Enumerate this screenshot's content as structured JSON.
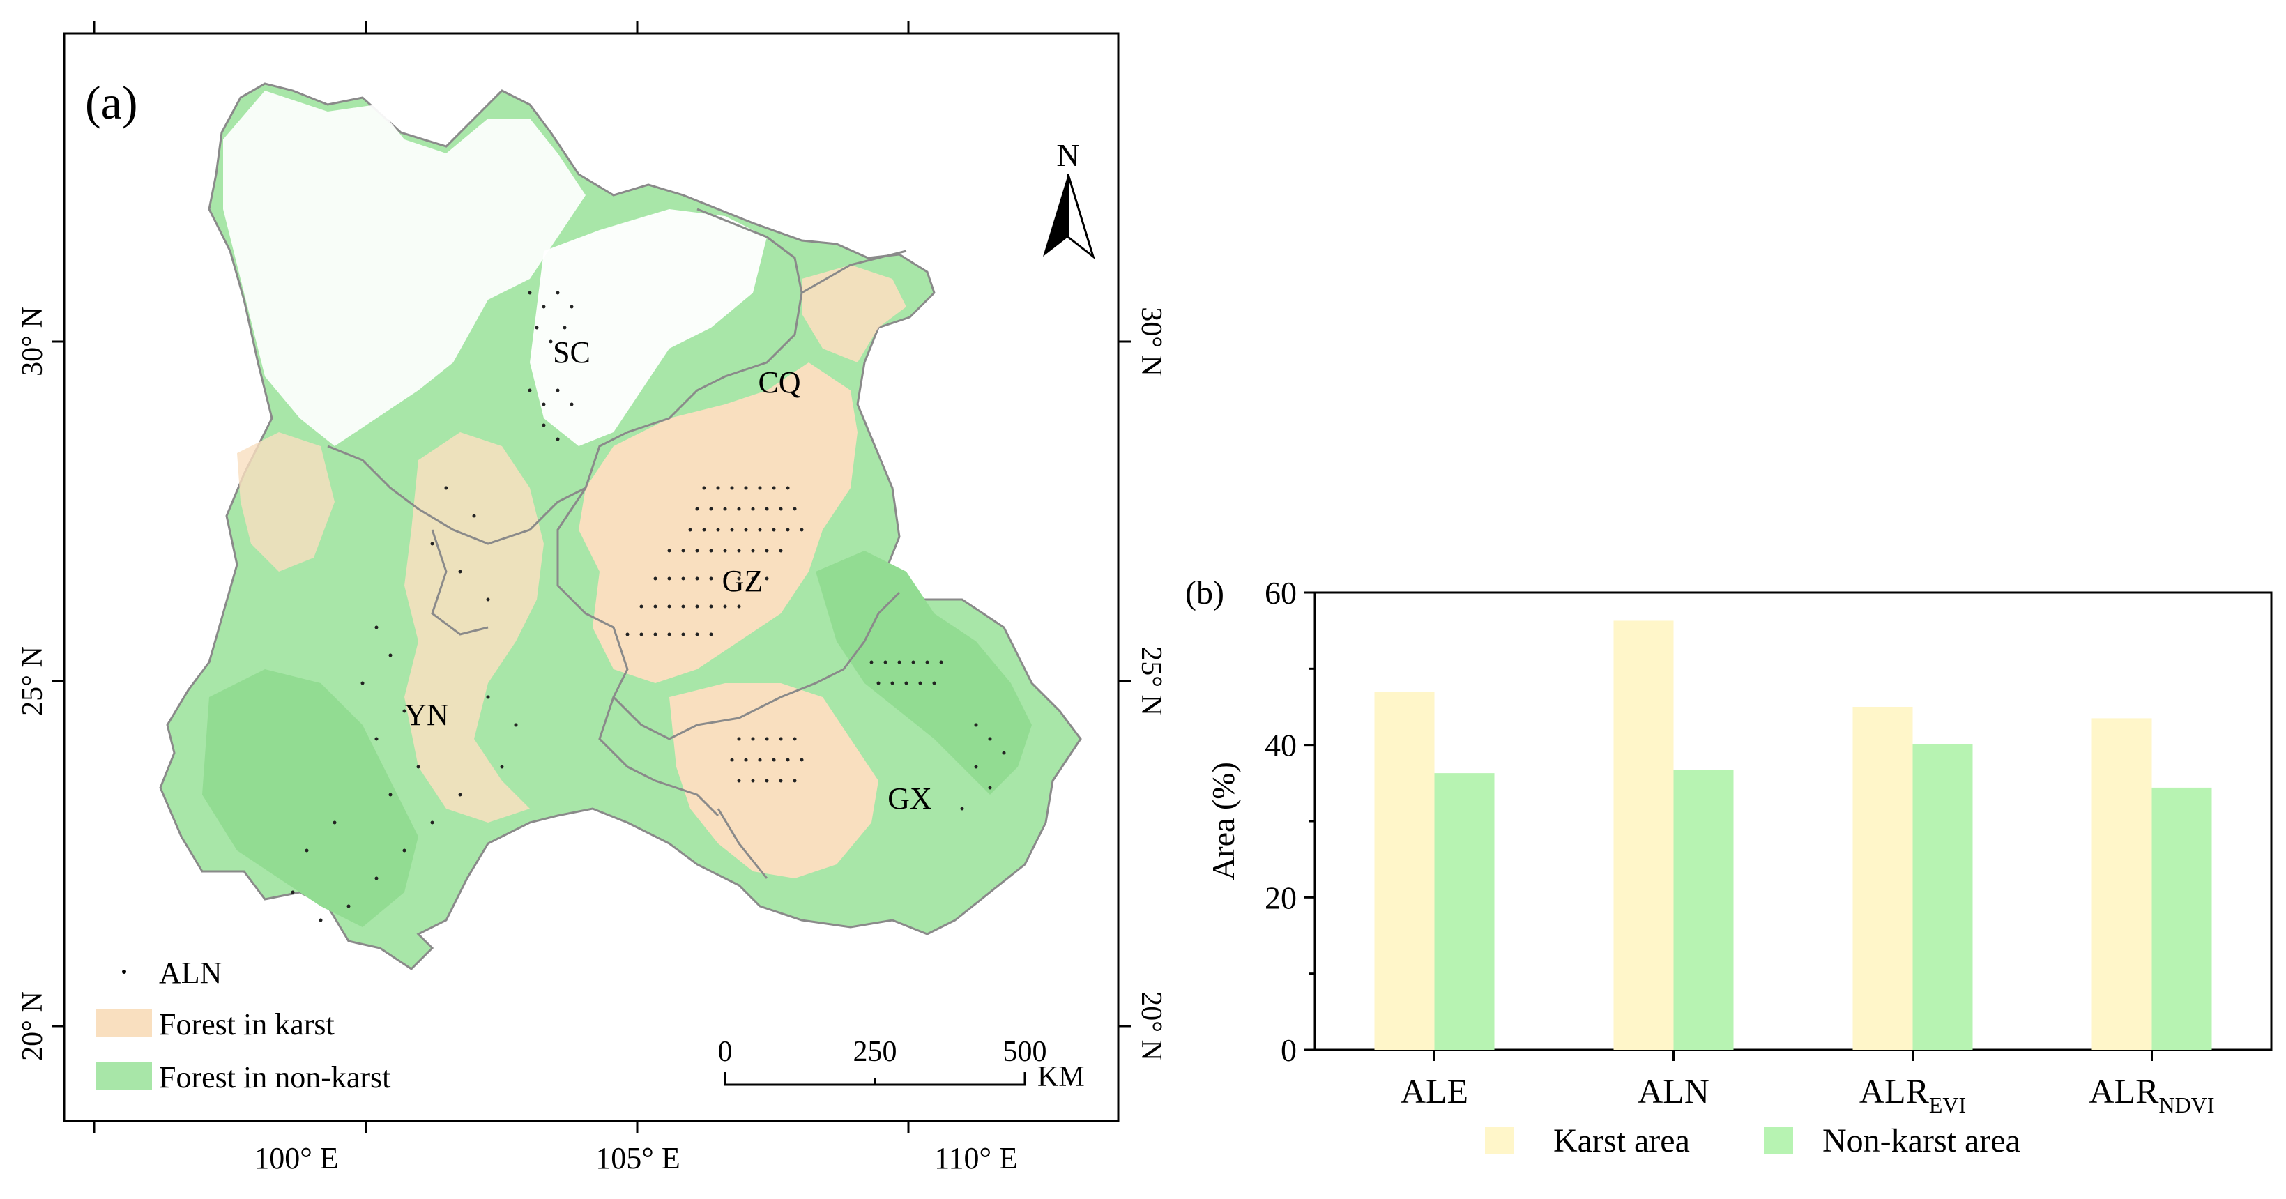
{
  "panel_a": {
    "label": "(a)",
    "north_label": "N",
    "lat_ticks": [
      "30° N",
      "25° N",
      "20° N"
    ],
    "lon_ticks": [
      "100° E",
      "105° E",
      "110° E"
    ],
    "regions": [
      "SC",
      "CQ",
      "GZ",
      "YN",
      "GX"
    ],
    "legend": {
      "aln": "ALN",
      "karst": "Forest in karst",
      "nonkarst": "Forest in non-karst"
    },
    "scale": {
      "t0": "0",
      "t1": "250",
      "t2": "500",
      "unit": "KM"
    },
    "colors": {
      "karst": "#f9dfbf",
      "nonkarst": "#a8e6a8",
      "border": "#8a8a8a",
      "white": "#ffffff"
    }
  },
  "chart_data": {
    "type": "bar",
    "panel_label": "(b)",
    "categories": [
      "ALE",
      "ALN",
      "ALR_EVI",
      "ALR_NDVI"
    ],
    "category_main": [
      "ALE",
      "ALN",
      "ALR",
      "ALR"
    ],
    "category_sub": [
      "",
      "",
      "EVI",
      "NDVI"
    ],
    "series": [
      {
        "name": "Karst area",
        "values": [
          47,
          56.3,
          45,
          43.5
        ],
        "color": "#fff6c9"
      },
      {
        "name": "Non-karst area",
        "values": [
          36.3,
          36.7,
          40.1,
          34.4
        ],
        "color": "#b7f3b2"
      }
    ],
    "ylabel": "Area (%)",
    "ylim": [
      0,
      60
    ],
    "yticks": [
      0,
      20,
      40,
      60
    ],
    "legend_position": "bottom"
  }
}
